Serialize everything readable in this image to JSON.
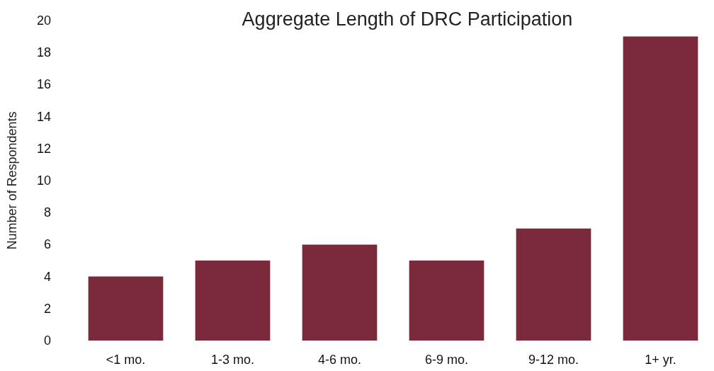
{
  "chart_data": {
    "type": "bar",
    "title": "Aggregate Length of DRC Participation",
    "ylabel": "Number of Respondents",
    "categories": [
      "<1 mo.",
      "1-3 mo.",
      "4-6 mo.",
      "6-9 mo.",
      "9-12 mo.",
      "1+ yr."
    ],
    "values": [
      4,
      5,
      6,
      5,
      7,
      19
    ],
    "color": "#7b2a3c",
    "ylim": [
      0,
      20
    ],
    "yticks": [
      0,
      2,
      4,
      6,
      8,
      10,
      12,
      14,
      16,
      18,
      20
    ],
    "grid": false
  }
}
